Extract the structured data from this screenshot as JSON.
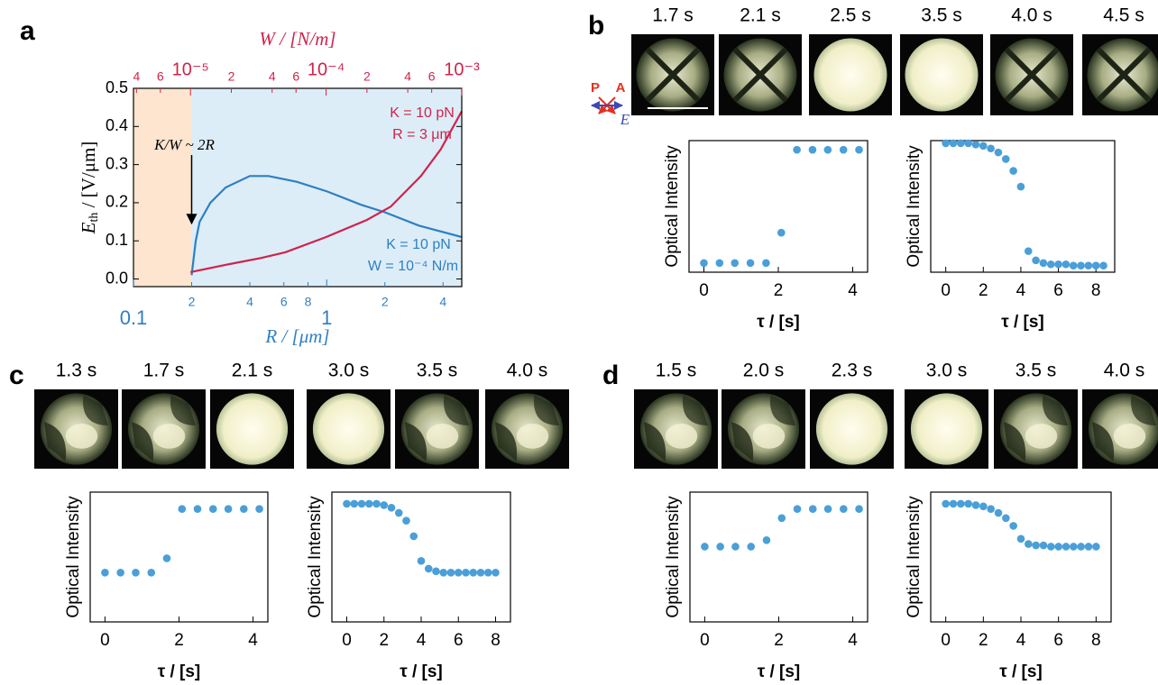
{
  "panel_labels": [
    "a",
    "b",
    "c",
    "d"
  ],
  "polarizer": {
    "P": "P",
    "A": "A",
    "E": "E"
  },
  "image_strips": [
    {
      "times": [
        "1.7 s",
        "2.1 s",
        "2.5 s",
        "3.5 s",
        "4.0 s",
        "4.5 s"
      ]
    },
    {
      "times": [
        "1.3 s",
        "1.7 s",
        "2.1 s",
        "3.0 s",
        "3.5 s",
        "4.0 s"
      ]
    },
    {
      "times": [
        "1.5 s",
        "2.0 s",
        "2.3 s",
        "3.0 s",
        "3.5 s",
        "4.0 s"
      ]
    }
  ],
  "chart_data": [
    {
      "type": "line",
      "x_scale": "log",
      "x2_scale": "log",
      "x_label": "R / [μm]",
      "x2_label": "W / [N/m]",
      "y_label": {
        "symbol": "E",
        "subscript": "th",
        "unit": " / [V/μm]"
      },
      "xlim": [
        0.1,
        5
      ],
      "xticks": [
        0.1,
        {
          "value": 0.2,
          "label": "2"
        },
        {
          "value": 0.4,
          "label": "4"
        },
        {
          "value": 0.6,
          "label": "6"
        },
        {
          "value": 0.8,
          "label": "8"
        },
        1,
        {
          "value": 2,
          "label": "2"
        },
        {
          "value": 4,
          "label": "4"
        }
      ],
      "x2lim": [
        3.8e-06,
        0.001
      ],
      "x2ticks": [
        {
          "value": 4e-06,
          "label": "4"
        },
        {
          "value": 6e-06,
          "label": "6"
        },
        {
          "value": 1e-05,
          "label": "10⁻⁵"
        },
        {
          "value": 2e-05,
          "label": "2"
        },
        {
          "value": 4e-05,
          "label": "4"
        },
        {
          "value": 6e-05,
          "label": "6"
        },
        {
          "value": 0.0001,
          "label": "10⁻⁴"
        },
        {
          "value": 0.0002,
          "label": "2"
        },
        {
          "value": 0.0004,
          "label": "4"
        },
        {
          "value": 0.0006,
          "label": "6"
        },
        {
          "value": 0.001,
          "label": "10⁻³"
        }
      ],
      "ylim": [
        -0.02,
        0.5
      ],
      "yticks": [
        {
          "value": 0,
          "label": "0.0"
        },
        0.1,
        0.2,
        0.3,
        0.4,
        0.5
      ],
      "regions": [
        {
          "xlim": [
            0.1,
            0.2
          ],
          "color": "#fde5cf"
        },
        {
          "xlim": [
            0.2,
            5
          ],
          "color": "#dcedf8"
        }
      ],
      "annotations": {
        "threshold": "K/W ~ 2R",
        "red_K": "K = 10 pN",
        "red_R": "R = 3 μm",
        "blue_K": "K = 10 pN",
        "blue_W": "W = 10⁻⁴ N/m"
      },
      "series": [
        {
          "color": "#2f7fc1",
          "x": [
            0.2,
            0.21,
            0.22,
            0.25,
            0.3,
            0.4,
            0.5,
            0.7,
            1,
            1.5,
            2,
            3,
            5
          ],
          "values": [
            0.01,
            0.1,
            0.15,
            0.2,
            0.24,
            0.27,
            0.27,
            0.255,
            0.23,
            0.195,
            0.175,
            0.14,
            0.11
          ]
        },
        {
          "color": "#d0234b",
          "axis": "x2",
          "x": [
            1e-05,
            2e-05,
            3.3e-05,
            5e-05,
            0.0001,
            0.0002,
            0.0003,
            0.0005,
            0.0007,
            0.001
          ],
          "values": [
            0.018,
            0.04,
            0.055,
            0.07,
            0.11,
            0.155,
            0.19,
            0.27,
            0.34,
            0.44
          ]
        }
      ]
    },
    {
      "type": "scatter",
      "color": "#4a9fd8",
      "x_label": "τ / [s]",
      "y_label": "Optical Intensity",
      "xlim": [
        -0.4,
        4.4
      ],
      "xticks": [
        0,
        2,
        4
      ],
      "ylim": [
        0,
        1
      ],
      "x": [
        0,
        0.42,
        0.83,
        1.25,
        1.67,
        2.08,
        2.5,
        2.92,
        3.33,
        3.75,
        4.17
      ],
      "values": [
        0.07,
        0.07,
        0.07,
        0.07,
        0.07,
        0.3,
        0.93,
        0.93,
        0.93,
        0.93,
        0.93
      ]
    },
    {
      "type": "scatter",
      "color": "#4a9fd8",
      "x_label": "τ / [s]",
      "y_label": "Optical Intensity",
      "xlim": [
        -0.8,
        9
      ],
      "xticks": [
        0,
        2,
        4,
        6,
        8
      ],
      "ylim": [
        0,
        1
      ],
      "x": [
        0,
        0.4,
        0.8,
        1.2,
        1.6,
        2.0,
        2.4,
        2.8,
        3.2,
        3.6,
        4.0,
        4.4,
        4.8,
        5.2,
        5.6,
        6.0,
        6.4,
        6.8,
        7.2,
        7.6,
        8.0,
        8.4
      ],
      "values": [
        0.98,
        0.98,
        0.98,
        0.98,
        0.97,
        0.96,
        0.94,
        0.91,
        0.86,
        0.77,
        0.65,
        0.16,
        0.09,
        0.07,
        0.06,
        0.06,
        0.06,
        0.05,
        0.05,
        0.05,
        0.05,
        0.05
      ]
    },
    {
      "type": "scatter",
      "color": "#4a9fd8",
      "x_label": "τ / [s]",
      "y_label": "Optical Intensity",
      "xlim": [
        -0.4,
        4.4
      ],
      "xticks": [
        0,
        2,
        4
      ],
      "ylim": [
        0,
        1
      ],
      "x": [
        0,
        0.42,
        0.83,
        1.25,
        1.67,
        2.08,
        2.5,
        2.92,
        3.33,
        3.75,
        4.17
      ],
      "values": [
        0.38,
        0.38,
        0.38,
        0.38,
        0.49,
        0.87,
        0.87,
        0.87,
        0.87,
        0.87,
        0.87
      ]
    },
    {
      "type": "scatter",
      "color": "#4a9fd8",
      "x_label": "τ / [s]",
      "y_label": "Optical Intensity",
      "xlim": [
        -0.8,
        8.8
      ],
      "xticks": [
        0,
        2,
        4,
        6,
        8
      ],
      "ylim": [
        0,
        1
      ],
      "x": [
        0,
        0.4,
        0.8,
        1.2,
        1.6,
        2.0,
        2.4,
        2.8,
        3.2,
        3.6,
        4.0,
        4.4,
        4.8,
        5.2,
        5.6,
        6.0,
        6.4,
        6.8,
        7.2,
        7.6,
        8.0
      ],
      "values": [
        0.91,
        0.91,
        0.91,
        0.91,
        0.91,
        0.9,
        0.88,
        0.84,
        0.78,
        0.66,
        0.47,
        0.41,
        0.39,
        0.38,
        0.38,
        0.38,
        0.38,
        0.38,
        0.38,
        0.38,
        0.38
      ]
    },
    {
      "type": "scatter",
      "color": "#4a9fd8",
      "x_label": "τ / [s]",
      "y_label": "Optical Intensity",
      "xlim": [
        -0.4,
        4.4
      ],
      "xticks": [
        0,
        2,
        4
      ],
      "ylim": [
        0,
        1
      ],
      "x": [
        0,
        0.42,
        0.83,
        1.25,
        1.67,
        2.08,
        2.5,
        2.92,
        3.33,
        3.75,
        4.17
      ],
      "values": [
        0.58,
        0.58,
        0.58,
        0.58,
        0.63,
        0.8,
        0.87,
        0.87,
        0.87,
        0.87,
        0.87
      ]
    },
    {
      "type": "scatter",
      "color": "#4a9fd8",
      "x_label": "τ / [s]",
      "y_label": "Optical Intensity",
      "xlim": [
        -0.8,
        8.8
      ],
      "xticks": [
        0,
        2,
        4,
        6,
        8
      ],
      "ylim": [
        0,
        1
      ],
      "x": [
        0,
        0.4,
        0.8,
        1.2,
        1.6,
        2.0,
        2.4,
        2.8,
        3.2,
        3.6,
        4.0,
        4.4,
        4.8,
        5.2,
        5.6,
        6.0,
        6.4,
        6.8,
        7.2,
        7.6,
        8.0
      ],
      "values": [
        0.91,
        0.91,
        0.91,
        0.91,
        0.9,
        0.89,
        0.87,
        0.84,
        0.8,
        0.74,
        0.64,
        0.6,
        0.59,
        0.59,
        0.58,
        0.58,
        0.58,
        0.58,
        0.58,
        0.58,
        0.58
      ]
    }
  ]
}
